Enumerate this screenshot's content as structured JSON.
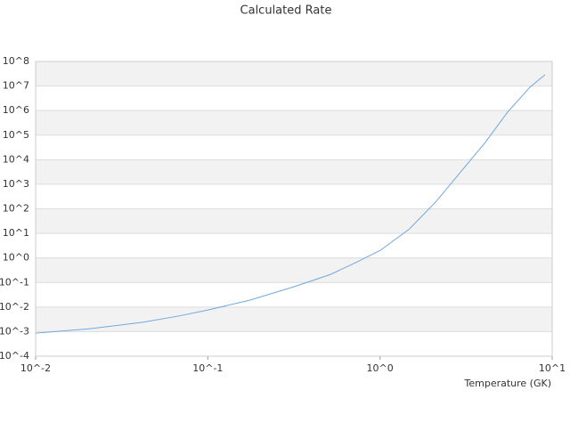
{
  "chart_data": {
    "type": "line",
    "title": "Calculated Rate",
    "x_label": "Temperature (GK)",
    "xscale": "log",
    "yscale": "log",
    "grid": true,
    "x": [
      0.01,
      0.0204,
      0.0419,
      0.0675,
      0.1,
      0.175,
      0.318,
      0.513,
      0.724,
      1,
      1.48,
      2.12,
      3.03,
      4.08,
      5.5,
      7.42,
      9.09
    ],
    "series": [
      {
        "name": "Calculated Rate",
        "color": "#6fa8dc",
        "values": [
          0.00087,
          0.0013,
          0.0024,
          0.0043,
          0.0076,
          0.019,
          0.068,
          0.21,
          0.65,
          2.0,
          15,
          200,
          4100,
          50000,
          850000,
          8900000,
          29000000
        ]
      }
    ],
    "xlim": [
      0.01,
      10
    ],
    "xticks": [
      {
        "value": 0.01,
        "label": "10^-2"
      },
      {
        "value": 0.1,
        "label": "10^-1"
      },
      {
        "value": 1,
        "label": "10^0"
      },
      {
        "value": 10,
        "label": "10^1"
      }
    ],
    "ylim": [
      0.0001,
      100000000
    ],
    "yticks": [
      {
        "value": 0.0001,
        "label": "10^-4"
      },
      {
        "value": 0.001,
        "label": "10^-3"
      },
      {
        "value": 0.01,
        "label": "10^-2"
      },
      {
        "value": 0.1,
        "label": "10^-1"
      },
      {
        "value": 1,
        "label": "10^0"
      },
      {
        "value": 10,
        "label": "10^1"
      },
      {
        "value": 100,
        "label": "10^2"
      },
      {
        "value": 1000,
        "label": "10^3"
      },
      {
        "value": 10000,
        "label": "10^4"
      },
      {
        "value": 100000,
        "label": "10^5"
      },
      {
        "value": 1000000,
        "label": "10^6"
      },
      {
        "value": 10000000,
        "label": "10^7"
      },
      {
        "value": 100000000,
        "label": "10^8"
      }
    ]
  }
}
